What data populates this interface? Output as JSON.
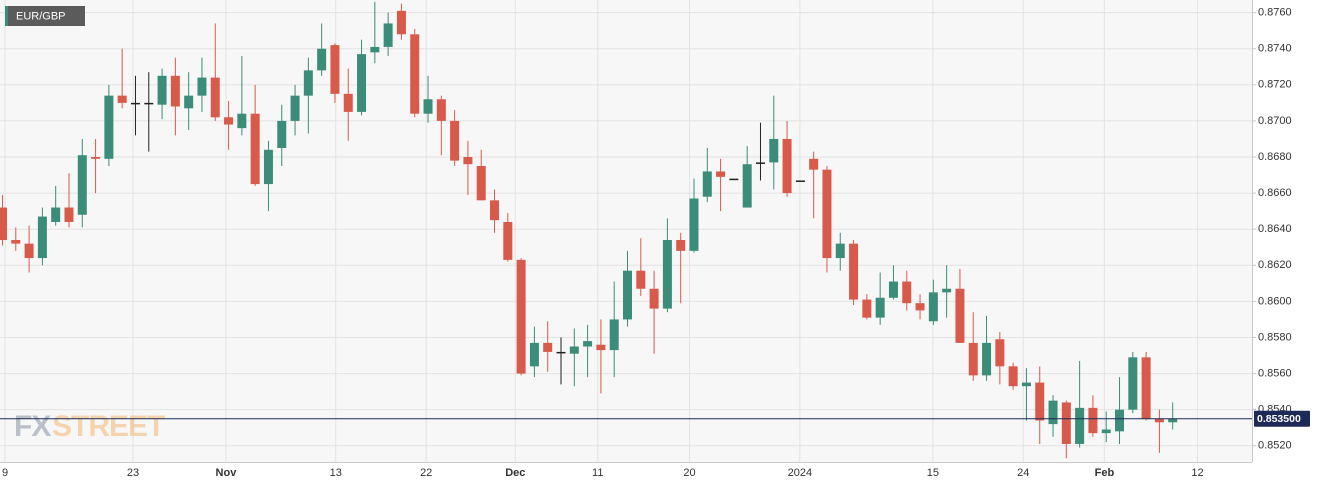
{
  "chart_data": {
    "type": "candlestick",
    "legend": "EUR/GBP",
    "watermark": [
      "FX",
      "STREET"
    ],
    "up_color": "#3b8c78",
    "down_color": "#d85a4b",
    "doji_color": "#222222",
    "grid": true,
    "ylim": [
      0.8511,
      0.8767
    ],
    "yticks": [
      {
        "value": 0.852,
        "label": "0.8520"
      },
      {
        "value": 0.854,
        "label": "0.8540"
      },
      {
        "value": 0.856,
        "label": "0.8560"
      },
      {
        "value": 0.858,
        "label": "0.8580"
      },
      {
        "value": 0.86,
        "label": "0.8600"
      },
      {
        "value": 0.862,
        "label": "0.8620"
      },
      {
        "value": 0.864,
        "label": "0.8640"
      },
      {
        "value": 0.866,
        "label": "0.8660"
      },
      {
        "value": 0.868,
        "label": "0.8680"
      },
      {
        "value": 0.87,
        "label": "0.8700"
      },
      {
        "value": 0.872,
        "label": "0.8720"
      },
      {
        "value": 0.874,
        "label": "0.8740"
      },
      {
        "value": 0.876,
        "label": "0.8760"
      }
    ],
    "xlim": [
      -0.15,
      94.0
    ],
    "xticks": [
      {
        "value": 0.23,
        "label": "9"
      },
      {
        "value": 9.85,
        "label": "23"
      },
      {
        "value": 16.84,
        "label": "Nov"
      },
      {
        "value": 25.1,
        "label": "13"
      },
      {
        "value": 31.9,
        "label": "22"
      },
      {
        "value": 38.6,
        "label": "Dec"
      },
      {
        "value": 44.8,
        "label": "11"
      },
      {
        "value": 51.7,
        "label": "20"
      },
      {
        "value": 60.0,
        "label": "2024"
      },
      {
        "value": 70.0,
        "label": "15"
      },
      {
        "value": 76.8,
        "label": "24"
      },
      {
        "value": 82.9,
        "label": "Feb"
      },
      {
        "value": 89.9,
        "label": "12"
      }
    ],
    "last_price": {
      "value": 0.8535,
      "label": "0.853500"
    },
    "open": [
      0.8652,
      0.8634,
      0.8632,
      0.8624,
      0.8644,
      0.8652,
      0.8648,
      0.868,
      0.8679,
      0.8714,
      0.871,
      0.871,
      0.8709,
      0.8725,
      0.8707,
      0.8714,
      0.8724,
      0.8702,
      0.8696,
      0.8704,
      0.8665,
      0.8685,
      0.87,
      0.8714,
      0.8728,
      0.8742,
      0.8715,
      0.8705,
      0.8738,
      0.8741,
      0.8761,
      0.8748,
      0.8704,
      0.8712,
      0.87,
      0.868,
      0.8675,
      0.8656,
      0.8644,
      0.8623,
      0.8564,
      0.8577,
      0.8572,
      0.8571,
      0.8575,
      0.8576,
      0.8573,
      0.859,
      0.8617,
      0.8607,
      0.8596,
      0.8634,
      0.8628,
      0.8658,
      0.8672,
      0.8668,
      0.8652,
      0.8677,
      0.8677,
      0.869,
      0.8667,
      0.8679,
      0.8673,
      0.8624,
      0.8632,
      0.8601,
      0.8591,
      0.8602,
      0.8611,
      0.8599,
      0.8589,
      0.8605,
      0.8607,
      0.8577,
      0.8559,
      0.8579,
      0.8564,
      0.8553,
      0.8555,
      0.8532,
      0.8544,
      0.8521,
      0.8541,
      0.8527,
      0.8528,
      0.854,
      0.8569,
      0.8535,
      0.8533
    ],
    "high": [
      0.8659,
      0.8641,
      0.8642,
      0.8652,
      0.8664,
      0.8671,
      0.869,
      0.869,
      0.872,
      0.874,
      0.8725,
      0.8727,
      0.8729,
      0.8735,
      0.8727,
      0.8735,
      0.8754,
      0.8711,
      0.8736,
      0.872,
      0.8689,
      0.8709,
      0.872,
      0.8735,
      0.8754,
      0.8743,
      0.8729,
      0.8745,
      0.8766,
      0.876,
      0.8765,
      0.8751,
      0.8725,
      0.8714,
      0.8706,
      0.8689,
      0.8684,
      0.8662,
      0.8649,
      0.8624,
      0.8586,
      0.8589,
      0.858,
      0.8585,
      0.8587,
      0.859,
      0.8611,
      0.8628,
      0.8635,
      0.8617,
      0.8646,
      0.8638,
      0.8668,
      0.8685,
      0.8679,
      0.8668,
      0.8686,
      0.8699,
      0.8714,
      0.87,
      0.8667,
      0.8683,
      0.8675,
      0.8638,
      0.8634,
      0.8604,
      0.8616,
      0.862,
      0.8617,
      0.8604,
      0.8612,
      0.862,
      0.8618,
      0.8594,
      0.8592,
      0.8583,
      0.8566,
      0.8563,
      0.8564,
      0.8548,
      0.8545,
      0.8567,
      0.8548,
      0.8539,
      0.8558,
      0.8572,
      0.8572,
      0.854,
      0.8544
    ],
    "low": [
      0.8631,
      0.8628,
      0.8616,
      0.862,
      0.8642,
      0.8641,
      0.8641,
      0.866,
      0.8675,
      0.8707,
      0.8692,
      0.8683,
      0.8701,
      0.8692,
      0.8695,
      0.8705,
      0.87,
      0.8684,
      0.8692,
      0.8664,
      0.865,
      0.8675,
      0.8692,
      0.8693,
      0.8725,
      0.871,
      0.8689,
      0.8703,
      0.8732,
      0.8736,
      0.8745,
      0.8702,
      0.8699,
      0.8681,
      0.8675,
      0.8659,
      0.8656,
      0.8638,
      0.8622,
      0.8559,
      0.8558,
      0.8561,
      0.8554,
      0.8553,
      0.8558,
      0.8549,
      0.8558,
      0.8586,
      0.8603,
      0.8571,
      0.8594,
      0.8599,
      0.8627,
      0.8655,
      0.865,
      0.8668,
      0.8652,
      0.8667,
      0.8662,
      0.8658,
      0.8667,
      0.8646,
      0.8616,
      0.8617,
      0.8598,
      0.859,
      0.8587,
      0.8601,
      0.8595,
      0.859,
      0.8587,
      0.8591,
      0.8577,
      0.8556,
      0.8556,
      0.8554,
      0.8551,
      0.8534,
      0.8521,
      0.8525,
      0.8513,
      0.8519,
      0.8525,
      0.8522,
      0.8521,
      0.8538,
      0.8534,
      0.8516,
      0.8529
    ],
    "close": [
      0.8634,
      0.8632,
      0.8624,
      0.8647,
      0.8652,
      0.8644,
      0.8681,
      0.8679,
      0.8714,
      0.871,
      0.871,
      0.871,
      0.8725,
      0.8708,
      0.8714,
      0.8724,
      0.8702,
      0.8698,
      0.8704,
      0.8665,
      0.8684,
      0.87,
      0.8714,
      0.8728,
      0.874,
      0.8715,
      0.8705,
      0.8737,
      0.8741,
      0.8754,
      0.8748,
      0.8704,
      0.8712,
      0.87,
      0.8678,
      0.8676,
      0.8656,
      0.8645,
      0.8623,
      0.856,
      0.8577,
      0.8572,
      0.8572,
      0.8575,
      0.8578,
      0.8573,
      0.859,
      0.8617,
      0.8607,
      0.8596,
      0.8634,
      0.8628,
      0.8657,
      0.8672,
      0.8669,
      0.8668,
      0.8676,
      0.8677,
      0.869,
      0.866,
      0.8667,
      0.8673,
      0.8624,
      0.8632,
      0.8601,
      0.8591,
      0.8602,
      0.8611,
      0.8599,
      0.8595,
      0.8605,
      0.8607,
      0.8577,
      0.8559,
      0.8577,
      0.8564,
      0.8553,
      0.8555,
      0.8534,
      0.8545,
      0.8521,
      0.8541,
      0.8527,
      0.8529,
      0.854,
      0.8569,
      0.8535,
      0.8533,
      0.8535
    ]
  }
}
